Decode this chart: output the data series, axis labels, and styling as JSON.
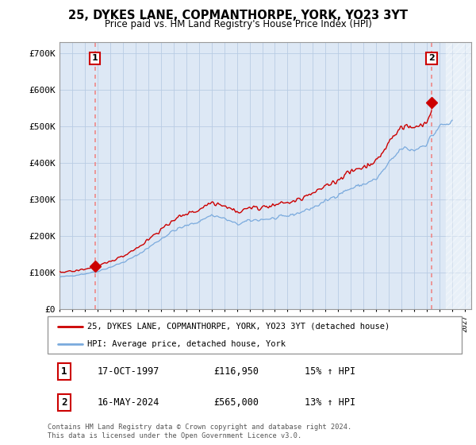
{
  "title": "25, DYKES LANE, COPMANTHORPE, YORK, YO23 3YT",
  "subtitle": "Price paid vs. HM Land Registry's House Price Index (HPI)",
  "ylim": [
    0,
    730000
  ],
  "yticks": [
    0,
    100000,
    200000,
    300000,
    400000,
    500000,
    600000,
    700000
  ],
  "ytick_labels": [
    "£0",
    "£100K",
    "£200K",
    "£300K",
    "£400K",
    "£500K",
    "£600K",
    "£700K"
  ],
  "transaction1": {
    "date_num": 1997.79,
    "price": 116950,
    "label": "1",
    "date_str": "17-OCT-1997",
    "price_str": "£116,950",
    "hpi_str": "15% ↑ HPI"
  },
  "transaction2": {
    "date_num": 2024.37,
    "price": 565000,
    "label": "2",
    "date_str": "16-MAY-2024",
    "price_str": "£565,000",
    "hpi_str": "13% ↑ HPI"
  },
  "legend1": "25, DYKES LANE, COPMANTHORPE, YORK, YO23 3YT (detached house)",
  "legend2": "HPI: Average price, detached house, York",
  "footer": "Contains HM Land Registry data © Crown copyright and database right 2024.\nThis data is licensed under the Open Government Licence v3.0.",
  "line_color_red": "#cc0000",
  "line_color_blue": "#7aaadd",
  "dashed_color": "#ee8888",
  "background_color": "#ffffff",
  "plot_bg_color": "#dde8f5",
  "grid_color": "#b8cce4",
  "xlim_min": 1995.0,
  "xlim_max": 2027.5,
  "hatch_start": 2025.5
}
